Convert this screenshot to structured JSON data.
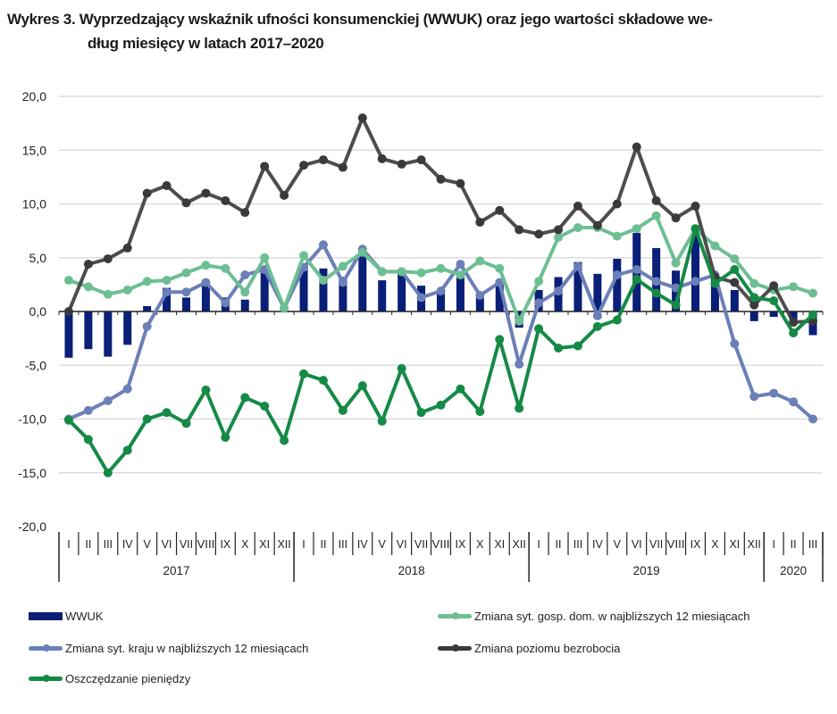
{
  "title": {
    "line1": "Wykres 3. Wyprzedzający wskaźnik ufności konsumenckiej (WWUK) oraz jego wartości składowe we-",
    "line2": "dług miesięcy w latach 2017–2020"
  },
  "colors": {
    "wwuk": "#0a1f78",
    "gosp_dom": "#6dbf93",
    "kraj": "#6b7fb8",
    "bezrobocie": "#3a3a3a",
    "oszczedzanie": "#158a45",
    "grid": "#dcdcdc",
    "axis": "#222222"
  },
  "chart_data": {
    "type": "bar+line",
    "title": "Wykres 3. Wyprzedzający wskaźnik ufności konsumenckiej (WWUK) oraz jego wartości składowe według miesięcy w latach 2017–2020",
    "xlabel": "",
    "ylabel": "",
    "ylim": [
      -20,
      20
    ],
    "yticks": [
      20,
      15,
      10,
      5,
      0,
      -5,
      -10,
      -15,
      -20
    ],
    "ytick_labels": [
      "20,0",
      "15,0",
      "10,0",
      "5,0",
      "0,0",
      "-5,0",
      "-10,0",
      "-15,0",
      "-20,0"
    ],
    "grid": true,
    "legend_position": "bottom",
    "categories": [
      "I",
      "II",
      "III",
      "IV",
      "V",
      "VI",
      "VII",
      "VIII",
      "IX",
      "X",
      "XI",
      "XII",
      "I",
      "II",
      "III",
      "IV",
      "V",
      "VI",
      "VII",
      "VIII",
      "IX",
      "X",
      "XI",
      "XII",
      "I",
      "II",
      "III",
      "IV",
      "V",
      "VI",
      "VII",
      "VIII",
      "IX",
      "X",
      "XI",
      "XII",
      "I",
      "II",
      "III"
    ],
    "year_groups": [
      {
        "label": "2017",
        "count": 12
      },
      {
        "label": "2018",
        "count": 12
      },
      {
        "label": "2019",
        "count": 12
      },
      {
        "label": "2020",
        "count": 3
      }
    ],
    "series": [
      {
        "name": "WWUK",
        "key": "wwuk",
        "kind": "bar",
        "values": [
          -4.3,
          -3.5,
          -4.2,
          -3.1,
          0.5,
          2.2,
          1.3,
          2.8,
          1.3,
          1.1,
          3.6,
          0.2,
          4.3,
          4.0,
          3.2,
          5.2,
          2.9,
          3.6,
          2.4,
          2.0,
          3.3,
          1.4,
          2.9,
          -1.5,
          2.0,
          3.2,
          4.6,
          3.5,
          4.9,
          7.3,
          5.9,
          3.8,
          7.1,
          3.0,
          2.0,
          -0.9,
          -0.5,
          -1.1,
          -2.2
        ]
      },
      {
        "name": "Zmiana syt. gosp. dom. w najbliższych 12 miesiącach",
        "key": "gosp_dom",
        "kind": "line",
        "values": [
          2.9,
          2.3,
          1.6,
          2.0,
          2.8,
          2.9,
          3.6,
          4.3,
          4.0,
          1.8,
          5.0,
          0.3,
          5.2,
          2.9,
          4.2,
          5.5,
          3.7,
          3.7,
          3.6,
          4.0,
          3.4,
          4.7,
          4.0,
          -0.9,
          2.8,
          6.9,
          7.8,
          7.8,
          7.0,
          7.7,
          8.9,
          4.5,
          7.7,
          6.1,
          4.9,
          2.6,
          2.0,
          2.3,
          1.7
        ]
      },
      {
        "name": "Zmiana syt. kraju w najbliższych 12 miesiącach",
        "key": "kraj",
        "kind": "line",
        "values": [
          -10.0,
          -9.2,
          -8.3,
          -7.2,
          -1.4,
          1.8,
          1.8,
          2.7,
          0.8,
          3.4,
          3.9,
          0.3,
          4.1,
          6.2,
          2.7,
          5.8,
          3.7,
          3.7,
          1.3,
          1.9,
          4.4,
          1.5,
          2.7,
          -4.9,
          0.8,
          1.9,
          4.2,
          -0.4,
          3.4,
          3.9,
          2.8,
          2.2,
          2.8,
          3.4,
          -3.0,
          -7.9,
          -7.6,
          -8.4,
          -10.0
        ]
      },
      {
        "name": "Zmiana poziomu bezrobocia",
        "key": "bezrobocie",
        "kind": "line",
        "values": [
          0.0,
          4.4,
          4.9,
          5.9,
          11.0,
          11.7,
          10.1,
          11.0,
          10.3,
          9.2,
          13.5,
          10.8,
          13.6,
          14.1,
          13.4,
          18.0,
          14.2,
          13.7,
          14.1,
          12.3,
          11.9,
          8.3,
          9.4,
          7.6,
          7.2,
          7.6,
          9.8,
          8.0,
          10.0,
          15.3,
          10.3,
          8.7,
          9.8,
          3.2,
          2.7,
          0.6,
          2.4,
          -1.0,
          -0.9
        ]
      },
      {
        "name": "Oszczędzanie pieniędzy",
        "key": "oszczedzanie",
        "kind": "line",
        "values": [
          -10.1,
          -11.9,
          -15.0,
          -12.9,
          -10.0,
          -9.4,
          -10.4,
          -7.3,
          -11.7,
          -8.0,
          -8.8,
          -12.0,
          -5.8,
          -6.4,
          -9.2,
          -6.9,
          -10.2,
          -5.3,
          -9.4,
          -8.7,
          -7.2,
          -9.3,
          -2.6,
          -9.0,
          -1.6,
          -3.4,
          -3.2,
          -1.4,
          -0.8,
          3.0,
          1.7,
          0.6,
          7.7,
          2.6,
          3.9,
          1.3,
          1.0,
          -2.0,
          -0.3
        ]
      }
    ]
  },
  "legend": [
    {
      "key": "wwuk",
      "label": "WWUK",
      "kind": "bar"
    },
    {
      "key": "gosp_dom",
      "label": "Zmiana syt. gosp. dom. w najbliższych 12 miesiącach",
      "kind": "line"
    },
    {
      "key": "kraj",
      "label": "Zmiana syt. kraju w najbliższych 12 miesiącach",
      "kind": "line"
    },
    {
      "key": "bezrobocie",
      "label": "Zmiana poziomu bezrobocia",
      "kind": "line"
    },
    {
      "key": "oszczedzanie",
      "label": "Oszczędzanie pieniędzy",
      "kind": "line"
    }
  ]
}
